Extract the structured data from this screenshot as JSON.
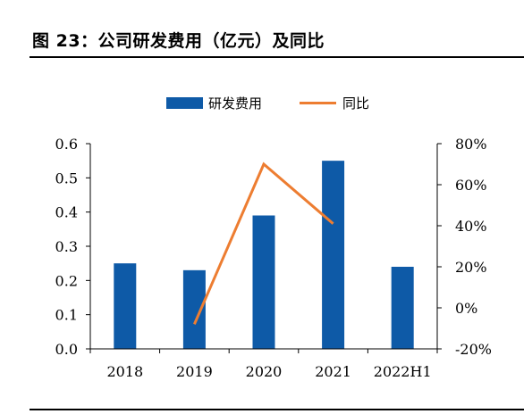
{
  "title": "图 23：公司研发费用（亿元）及同比",
  "chart_data": {
    "type": "bar",
    "categories": [
      "2018",
      "2019",
      "2020",
      "2021",
      "2022H1"
    ],
    "series": [
      {
        "name": "研发费用",
        "type": "bar",
        "axis": "left",
        "values": [
          0.25,
          0.23,
          0.39,
          0.55,
          0.24
        ]
      },
      {
        "name": "同比",
        "type": "line",
        "axis": "right",
        "values": [
          null,
          -8,
          70,
          41,
          null
        ]
      }
    ],
    "y_left": {
      "range": [
        0,
        0.6
      ],
      "ticks": [
        "0.0",
        "0.1",
        "0.2",
        "0.3",
        "0.4",
        "0.5",
        "0.6"
      ]
    },
    "y_right": {
      "range": [
        -20,
        80
      ],
      "ticks": [
        "-20%",
        "0%",
        "20%",
        "40%",
        "60%",
        "80%"
      ]
    },
    "legend_position": "top-center",
    "grid": false,
    "colors": {
      "bar": "#0e5aa7",
      "line": "#ed7d31"
    }
  }
}
